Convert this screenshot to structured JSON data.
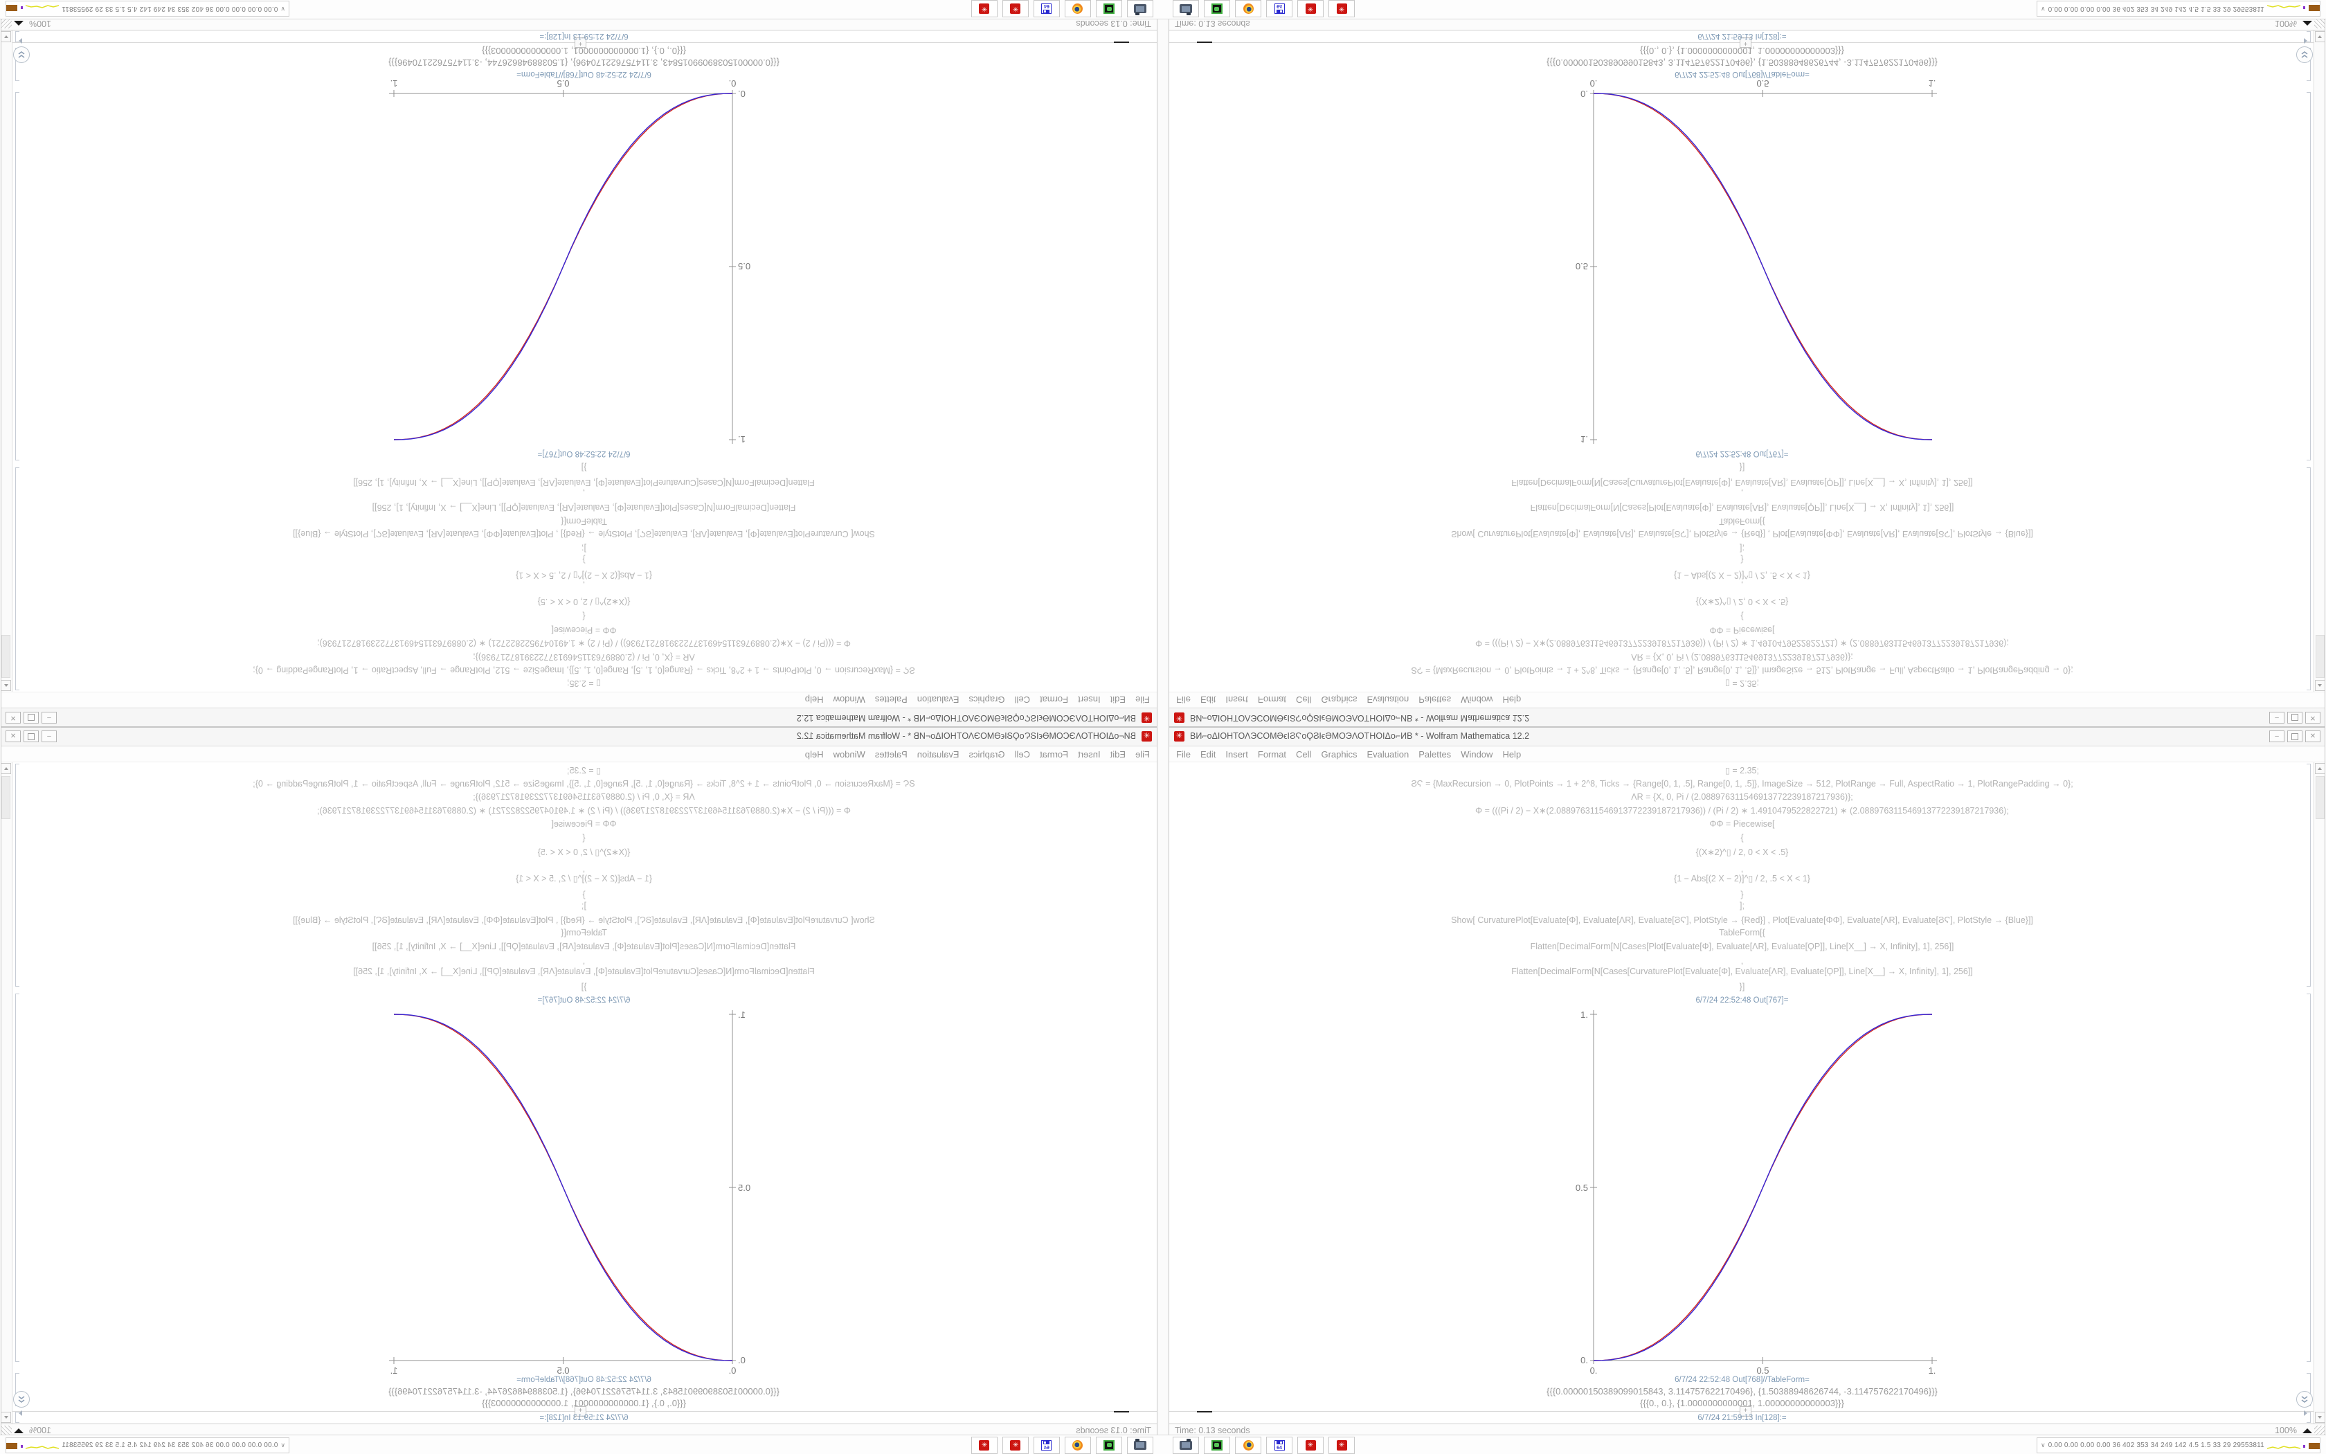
{
  "app": {
    "title": "ВИ⌐oΔΙΟΗΤΟΛЭCOMӘϵΙϨϚoϘϨΙϵӘMOЭΛΟΤΗΟΙΔo⌐ИВ * - Wolfram Mathematica 12.2",
    "menu": [
      "File",
      "Edit",
      "Insert",
      "Format",
      "Cell",
      "Graphics",
      "Evaluation",
      "Palettes",
      "Window",
      "Help"
    ],
    "window_buttons": {
      "minimize": "‒",
      "close": "✕"
    }
  },
  "notebook": {
    "code_lines": [
      "▯ = 2.35;",
      "ϨϚ = {MaxRecursion → 0, PlotPoints → 1 + 2^8, Ticks → {Range[0, 1, .5], Range[0, 1, .5]}, ImageSize → 512, PlotRange → Full, AspectRatio → 1, PlotRangePadding → 0};",
      "ΛR = {X, 0, Pi / (2.088976311546913772239187217936)};",
      "Φ = (((Pi / 2) − X∗(2.088976311546913772239187217936)) / (Pi / 2) ∗ 1.4910479522822721) ∗ (2.088976311546913772239187217936);",
      "ΦΦ = Piecewise[",
      "{",
      "{(X∗2)^▯ / 2, 0 < X < .5}",
      ",",
      "{1 − Abs[(2 X − 2)]^▯ / 2, .5 < X < 1}",
      "}",
      "];",
      "Show[  CurvaturePlot[Evaluate[Φ], Evaluate[ΛR], Evaluate[ϨϚ], PlotStyle → {Red}]  ,  Plot[Evaluate[ΦΦ], Evaluate[ΛR], Evaluate[ϨϚ], PlotStyle → {Blue}]]",
      "TableForm[{",
      "Flatten[DecimalForm[N[Cases[Plot[Evaluate[Φ], Evaluate[ΛR], Evaluate[ϘΡ]], Line[X__] → X, Infinity], 1], 256]]",
      ",",
      "Flatten[DecimalForm[N[Cases[CurvaturePlot[Evaluate[Φ], Evaluate[ΛR], Evaluate[ϘΡ]], Line[X__] → X, Infinity], 1], 256]]",
      "}]"
    ],
    "cells": {
      "out767_label": "6/7/24 22:52:48 Out[767]=",
      "out768_label": "6/7/24 22:52:48 Out[768]//TableForm=",
      "tableform_rows": [
        "{{{0.00000150389099015843, 3.114757622170496}, {1.50388948626744, -3.114757622170496}}}",
        "{{{0., 0.}, {1.0000000000001, 1.00000000000003}}}"
      ],
      "in128_label": "6/7/24 21:59:13 In[128]:=",
      "plus_marker": "+"
    },
    "status": {
      "time_text": "Time: 0.13 seconds",
      "magnification": "100%"
    }
  },
  "taskbar": {
    "sysmon_text": "0.00 0.00 0.00 0.00  36  402  353  34  249  142  4.5  1.5  33  29  29553811",
    "sysmon_chevron": "∨",
    "floppy_label": "64",
    "mathematica_glyph": "✳"
  },
  "colors": {
    "mathematica_red_icon": "#cc1511",
    "curve_red": "#d42a20",
    "curve_blue": "#3426d8",
    "cell_label_blue": "#7f9ab5"
  },
  "chart_data": {
    "type": "line",
    "title": "",
    "xlabel": "",
    "ylabel": "",
    "xlim": [
      0,
      1
    ],
    "ylim": [
      0,
      1
    ],
    "grid": false,
    "legend": "none",
    "xticks": [
      "0.",
      "0.5",
      "1."
    ],
    "yticks": [
      "0.",
      "0.5",
      "1."
    ],
    "x": [
      0,
      0.025,
      0.05,
      0.075,
      0.1,
      0.125,
      0.15,
      0.175,
      0.2,
      0.225,
      0.25,
      0.275,
      0.3,
      0.325,
      0.35,
      0.375,
      0.4,
      0.425,
      0.45,
      0.475,
      0.5,
      0.525,
      0.55,
      0.575,
      0.6,
      0.625,
      0.65,
      0.675,
      0.7,
      0.725,
      0.75,
      0.775,
      0.8,
      0.825,
      0.85,
      0.875,
      0.9,
      0.925,
      0.95,
      0.975,
      1
    ],
    "series": [
      {
        "name": "CurvaturePlot[Φ] (Red)",
        "color": "#d42a20",
        "values": [
          0,
          0.0005,
          0.0026,
          0.0066,
          0.0128,
          0.0212,
          0.0321,
          0.0456,
          0.0619,
          0.081,
          0.1029,
          0.128,
          0.156,
          0.1872,
          0.2217,
          0.2594,
          0.3006,
          0.3452,
          0.3932,
          0.4448,
          0.5,
          0.5552,
          0.6068,
          0.6548,
          0.6994,
          0.7406,
          0.7783,
          0.8128,
          0.844,
          0.872,
          0.8971,
          0.919,
          0.9381,
          0.9544,
          0.9679,
          0.9788,
          0.9872,
          0.9934,
          0.9974,
          0.9995,
          1
        ]
      },
      {
        "name": "Plot[ΦΦ] (Blue)",
        "color": "#3426d8",
        "values": [
          0,
          0.0004,
          0.0022,
          0.0058,
          0.0114,
          0.0192,
          0.0296,
          0.0424,
          0.058,
          0.0766,
          0.0981,
          0.1227,
          0.1505,
          0.1817,
          0.2162,
          0.2543,
          0.296,
          0.3413,
          0.3904,
          0.4432,
          0.5,
          0.5568,
          0.6096,
          0.6587,
          0.704,
          0.7457,
          0.7838,
          0.8183,
          0.8495,
          0.8773,
          0.9019,
          0.9234,
          0.942,
          0.9576,
          0.9704,
          0.9808,
          0.9886,
          0.9942,
          0.9978,
          0.9996,
          1
        ]
      }
    ]
  }
}
